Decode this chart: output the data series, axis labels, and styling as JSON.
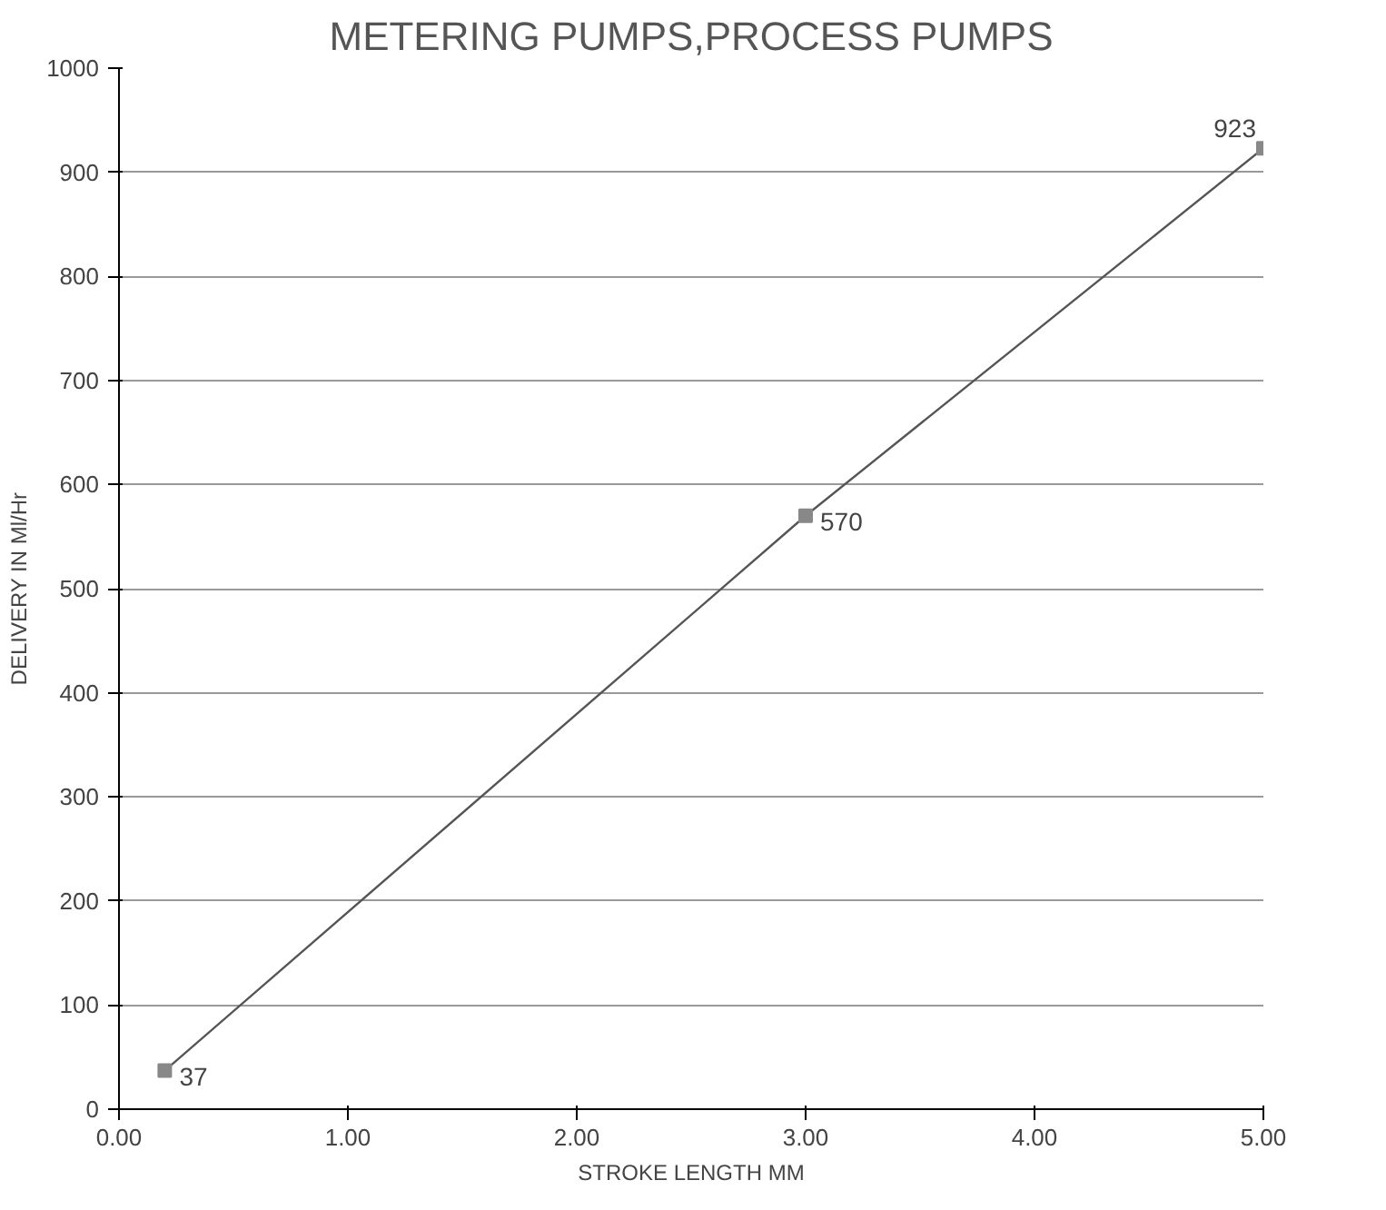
{
  "chart_data": {
    "type": "line",
    "title": "METERING PUMPS,PROCESS PUMPS",
    "xlabel": "STROKE LENGTH MM",
    "ylabel": "DELIVERY IN Ml/Hr",
    "x": [
      0.2,
      3.0,
      5.0
    ],
    "series": [
      {
        "color": "#555555",
        "values": [
          37,
          570,
          923
        ]
      }
    ],
    "data_labels": true,
    "marker": "square",
    "line_style": "solid",
    "grid": "y",
    "xlim": [
      0,
      5
    ],
    "xticks": [
      {
        "value": 0,
        "label": "0.00"
      },
      {
        "value": 1,
        "label": "1.00"
      },
      {
        "value": 2,
        "label": "2.00"
      },
      {
        "value": 3,
        "label": "3.00"
      },
      {
        "value": 4,
        "label": "4.00"
      },
      {
        "value": 5,
        "label": "5.00"
      }
    ],
    "ylim": [
      0,
      1000
    ],
    "yticks": [
      0,
      100,
      200,
      300,
      400,
      500,
      600,
      700,
      800,
      900,
      1000
    ]
  }
}
